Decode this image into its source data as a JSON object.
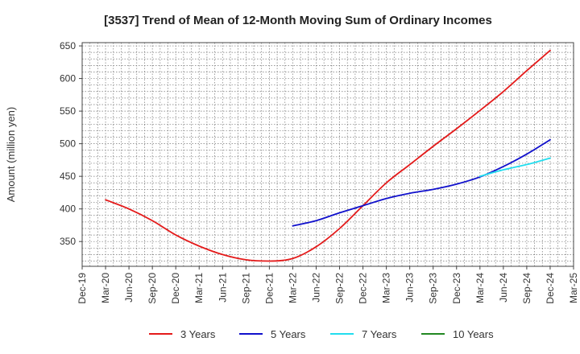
{
  "chart_data": {
    "type": "line",
    "title": "[3537]  Trend of Mean of 12-Month Moving Sum of Ordinary Incomes",
    "xlabel": "",
    "ylabel": "Amount (million yen)",
    "ylim": [
      312,
      655
    ],
    "yticks": [
      350,
      400,
      450,
      500,
      550,
      600,
      650
    ],
    "x_tick_labels": [
      "Dec-19",
      "Mar-20",
      "Jun-20",
      "Sep-20",
      "Dec-20",
      "Mar-21",
      "Jun-21",
      "Sep-21",
      "Dec-21",
      "Mar-22",
      "Jun-22",
      "Sep-22",
      "Dec-22",
      "Mar-23",
      "Jun-23",
      "Sep-23",
      "Dec-23",
      "Mar-24",
      "Jun-24",
      "Sep-24",
      "Dec-24",
      "Mar-25"
    ],
    "grid": true,
    "legend_position": "bottom",
    "series": [
      {
        "name": "3 Years",
        "color": "#e41a1a",
        "points": [
          [
            "Mar-20",
            414
          ],
          [
            "Jun-20",
            400
          ],
          [
            "Sep-20",
            382
          ],
          [
            "Dec-20",
            360
          ],
          [
            "Mar-21",
            343
          ],
          [
            "Jun-21",
            330
          ],
          [
            "Sep-21",
            322
          ],
          [
            "Dec-21",
            320
          ],
          [
            "Mar-22",
            324
          ],
          [
            "Jun-22",
            342
          ],
          [
            "Sep-22",
            370
          ],
          [
            "Dec-22",
            405
          ],
          [
            "Mar-23",
            440
          ],
          [
            "Jun-23",
            468
          ],
          [
            "Sep-23",
            496
          ],
          [
            "Dec-23",
            523
          ],
          [
            "Mar-24",
            551
          ],
          [
            "Jun-24",
            580
          ],
          [
            "Sep-24",
            612
          ],
          [
            "Dec-24",
            643
          ]
        ]
      },
      {
        "name": "5 Years",
        "color": "#1010cc",
        "points": [
          [
            "Mar-22",
            374
          ],
          [
            "Jun-22",
            382
          ],
          [
            "Sep-22",
            394
          ],
          [
            "Dec-22",
            405
          ],
          [
            "Mar-23",
            416
          ],
          [
            "Jun-23",
            424
          ],
          [
            "Sep-23",
            430
          ],
          [
            "Dec-23",
            438
          ],
          [
            "Mar-24",
            449
          ],
          [
            "Jun-24",
            465
          ],
          [
            "Sep-24",
            484
          ],
          [
            "Dec-24",
            506
          ]
        ]
      },
      {
        "name": "7 Years",
        "color": "#22ddee",
        "points": [
          [
            "Mar-24",
            450
          ],
          [
            "Jun-24",
            460
          ],
          [
            "Sep-24",
            468
          ],
          [
            "Dec-24",
            478
          ]
        ]
      },
      {
        "name": "10 Years",
        "color": "#228822",
        "points": []
      }
    ]
  }
}
